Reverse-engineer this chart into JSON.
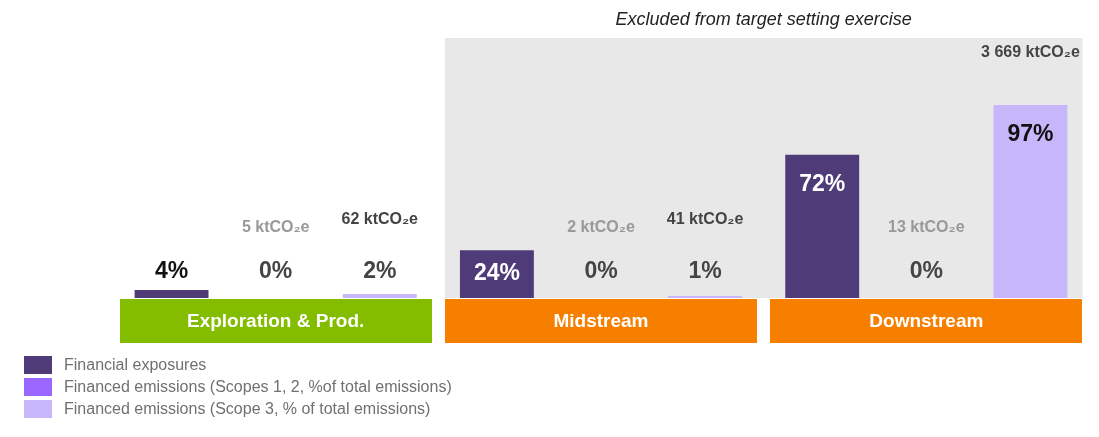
{
  "chart_data": {
    "type": "bar",
    "categories": [
      "Exploration & Prod.",
      "Midstream",
      "Downstream"
    ],
    "series": [
      {
        "name": "Financial exposures",
        "color": "#4f3b78",
        "values": [
          4,
          24,
          72
        ],
        "value_labels": [
          "4%",
          "24%",
          "72%"
        ]
      },
      {
        "name": "Financed emissions (Scopes 1, 2, %of total emissions)",
        "color": "#9966ff",
        "values": [
          0,
          0,
          0
        ],
        "value_labels": [
          "0%",
          "0%",
          "0%"
        ]
      },
      {
        "name": "Financed emissions (Scope 3, % of total emissions)",
        "color": "#c8b6fa",
        "values": [
          2,
          1,
          97
        ],
        "value_labels": [
          "2%",
          "1%",
          "97%"
        ]
      }
    ],
    "tick_labels": "x",
    "legend": "bottom left",
    "annotations": [
      "5 ktCO₂e",
      "62 ktCO₂e",
      "2 ktCO₂e",
      "41 ktCO₂e",
      "13 ktCO₂e",
      "3 669 ktCO₂e"
    ],
    "bands": [
      {
        "axis": "x",
        "from": "Midstream",
        "to": "Downstream",
        "label": "Excluded from target setting exercise",
        "color": "#e8e8e8"
      }
    ]
  }
}
